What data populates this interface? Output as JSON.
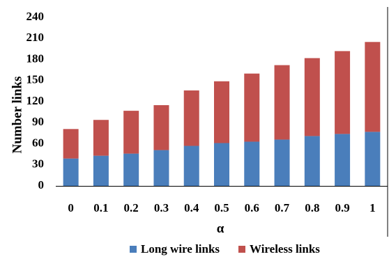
{
  "chart_data": {
    "type": "bar",
    "stacked": true,
    "categories": [
      "0",
      "0.1",
      "0.2",
      "0.3",
      "0.4",
      "0.5",
      "0.6",
      "0.7",
      "0.8",
      "0.9",
      "1"
    ],
    "series": [
      {
        "name": "Long wire links",
        "color": "#4a7ebb",
        "values": [
          39,
          43,
          46,
          51,
          57,
          61,
          63,
          66,
          71,
          74,
          77
        ]
      },
      {
        "name": "Wireless links",
        "color": "#c0504d",
        "values": [
          42,
          51,
          61,
          64,
          79,
          88,
          97,
          106,
          111,
          118,
          128
        ]
      }
    ],
    "xlabel": "α",
    "ylabel": "Number links",
    "ylim": [
      0,
      240
    ],
    "yticks": [
      "0",
      "30",
      "60",
      "90",
      "120",
      "150",
      "180",
      "210",
      "240"
    ],
    "legend_position": "bottom",
    "grid": false
  }
}
